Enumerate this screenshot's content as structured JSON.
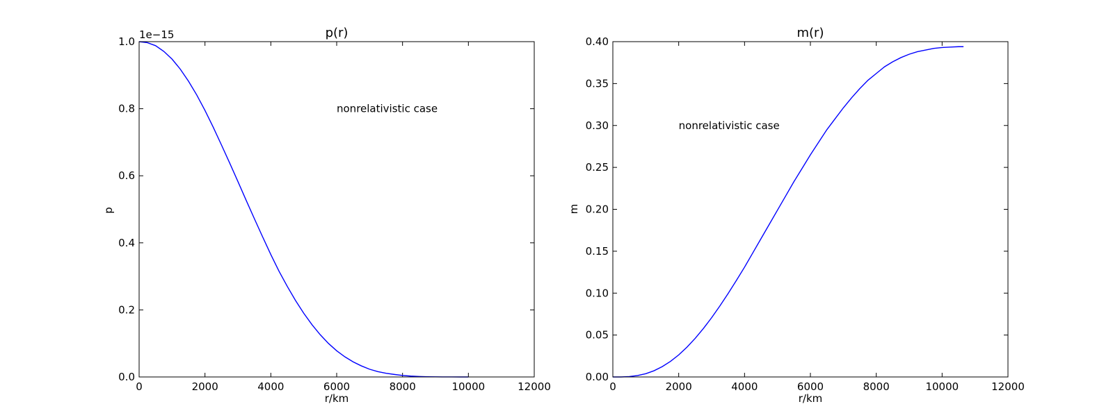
{
  "chart_data": [
    {
      "type": "line",
      "title": "p(r)",
      "xlabel": "r/km",
      "ylabel": "p",
      "xlim": [
        0,
        12000
      ],
      "ylim": [
        0,
        1.0
      ],
      "xticks": [
        0,
        2000,
        4000,
        6000,
        8000,
        10000,
        12000
      ],
      "xtick_labels": [
        "0",
        "2000",
        "4000",
        "6000",
        "8000",
        "10000",
        "12000"
      ],
      "yticks": [
        0,
        0.2,
        0.4,
        0.6,
        0.8,
        1.0
      ],
      "ytick_labels": [
        "0.0",
        "0.2",
        "0.4",
        "0.6",
        "0.8",
        "1.0"
      ],
      "y_offset_text": "1e−15",
      "grid": false,
      "annotation": {
        "text": "nonrelativistic case",
        "x": 6000,
        "y": 0.8
      },
      "series": [
        {
          "color": "#0000ff",
          "x": [
            0,
            250,
            500,
            750,
            1000,
            1250,
            1500,
            1750,
            2000,
            2250,
            2500,
            2750,
            3000,
            3250,
            3500,
            3750,
            4000,
            4250,
            4500,
            4750,
            5000,
            5250,
            5500,
            5750,
            6000,
            6250,
            6500,
            6750,
            7000,
            7250,
            7500,
            7750,
            8000,
            8250,
            8500,
            8750,
            9000,
            9250,
            9500,
            9750,
            10000
          ],
          "values": [
            1.0,
            0.997,
            0.988,
            0.971,
            0.948,
            0.918,
            0.882,
            0.841,
            0.795,
            0.745,
            0.692,
            0.638,
            0.583,
            0.527,
            0.472,
            0.418,
            0.365,
            0.315,
            0.27,
            0.228,
            0.19,
            0.156,
            0.126,
            0.1,
            0.078,
            0.06,
            0.045,
            0.033,
            0.023,
            0.016,
            0.011,
            0.0075,
            0.0045,
            0.0026,
            0.0014,
            0.0007,
            0.0003,
            0.0001,
            4e-05,
            1e-05,
            0.0
          ]
        }
      ]
    },
    {
      "type": "line",
      "title": "m(r)",
      "xlabel": "r/km",
      "ylabel": "m",
      "xlim": [
        0,
        12000
      ],
      "ylim": [
        0,
        0.4
      ],
      "xticks": [
        0,
        2000,
        4000,
        6000,
        8000,
        10000,
        12000
      ],
      "xtick_labels": [
        "0",
        "2000",
        "4000",
        "6000",
        "8000",
        "10000",
        "12000"
      ],
      "yticks": [
        0,
        0.05,
        0.1,
        0.15,
        0.2,
        0.25,
        0.3,
        0.35,
        0.4
      ],
      "ytick_labels": [
        "0.00",
        "0.05",
        "0.10",
        "0.15",
        "0.20",
        "0.25",
        "0.30",
        "0.35",
        "0.40"
      ],
      "grid": false,
      "annotation": {
        "text": "nonrelativistic case",
        "x": 2000,
        "y": 0.3
      },
      "series": [
        {
          "color": "#0000ff",
          "x": [
            0,
            250,
            500,
            750,
            1000,
            1250,
            1500,
            1750,
            2000,
            2250,
            2500,
            2750,
            3000,
            3250,
            3500,
            3750,
            4000,
            4250,
            4500,
            4750,
            5000,
            5250,
            5500,
            5750,
            6000,
            6250,
            6500,
            6750,
            7000,
            7250,
            7500,
            7750,
            8000,
            8250,
            8500,
            8750,
            9000,
            9250,
            9500,
            9750,
            10000,
            10250,
            10500,
            10650
          ],
          "values": [
            0.0,
            0.0,
            0.0005,
            0.0017,
            0.0039,
            0.0074,
            0.0123,
            0.0186,
            0.0263,
            0.0355,
            0.046,
            0.0578,
            0.0707,
            0.0847,
            0.0995,
            0.115,
            0.131,
            0.148,
            0.165,
            0.182,
            0.199,
            0.216,
            0.233,
            0.249,
            0.265,
            0.28,
            0.295,
            0.308,
            0.321,
            0.333,
            0.344,
            0.354,
            0.362,
            0.37,
            0.376,
            0.381,
            0.385,
            0.388,
            0.39,
            0.392,
            0.393,
            0.3935,
            0.394,
            0.394
          ]
        }
      ]
    }
  ]
}
